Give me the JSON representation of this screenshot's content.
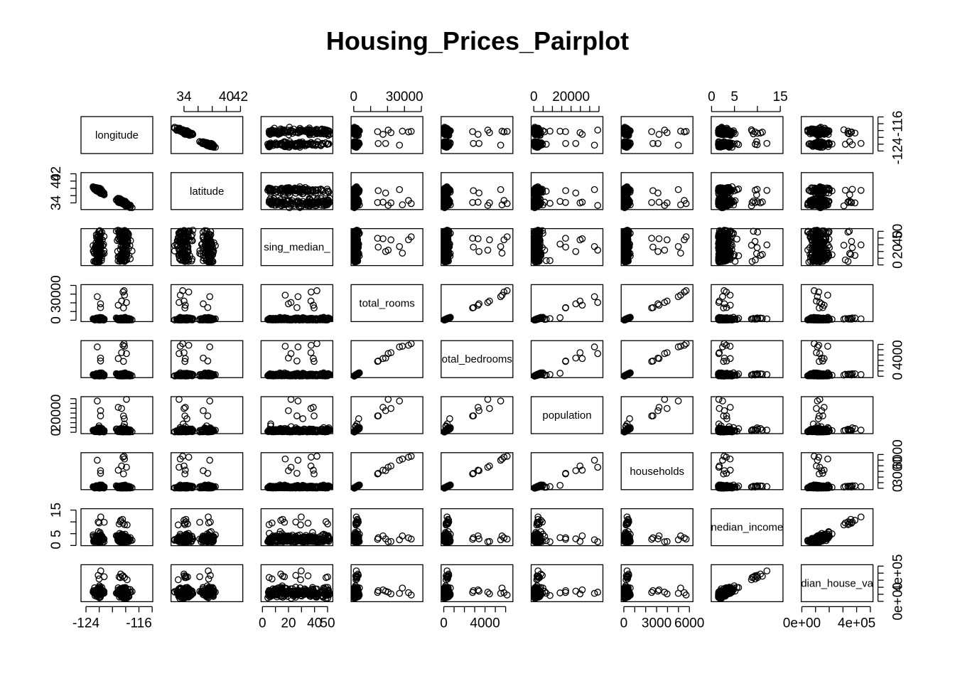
{
  "chart_data": {
    "type": "scatter",
    "subtype": "pairplot",
    "title": "Housing_Prices_Pairplot",
    "variables": [
      {
        "name": "longitude",
        "label": "longitude",
        "range": [
          -124.35,
          -114.31
        ],
        "ticks": [
          -124,
          -122,
          -120,
          -118,
          -116,
          -114
        ],
        "tick_labels": {
          "-124": "-124",
          "-116": "-116"
        }
      },
      {
        "name": "latitude",
        "label": "latitude",
        "range": [
          32.54,
          41.95
        ],
        "ticks": [
          34,
          36,
          38,
          40,
          42
        ],
        "tick_labels": {
          "34": "34",
          "40": "40",
          "42": "42"
        }
      },
      {
        "name": "housing_median_age",
        "label": "sing_median_",
        "range": [
          1,
          52
        ],
        "ticks": [
          0,
          10,
          20,
          30,
          40,
          50
        ],
        "tick_labels": {
          "0": "0",
          "20": "20",
          "40": "40",
          "50": "50"
        }
      },
      {
        "name": "total_rooms",
        "label": "total_rooms",
        "range": [
          2,
          39320
        ],
        "ticks": [
          0,
          10000,
          20000,
          30000,
          40000
        ],
        "tick_labels": {
          "0": "0",
          "30000": "30000"
        }
      },
      {
        "name": "total_bedrooms",
        "label": "otal_bedrooms",
        "range": [
          1,
          6445
        ],
        "ticks": [
          0,
          1000,
          2000,
          3000,
          4000,
          5000,
          6000
        ],
        "tick_labels": {
          "0": "0",
          "4000": "4000"
        }
      },
      {
        "name": "population",
        "label": "population",
        "range": [
          3,
          35682
        ],
        "ticks": [
          0,
          5000,
          10000,
          15000,
          20000,
          25000,
          30000,
          35000
        ],
        "tick_labels": {
          "0": "0",
          "20000": "20000"
        }
      },
      {
        "name": "households",
        "label": "households",
        "range": [
          1,
          6082
        ],
        "ticks": [
          0,
          1000,
          2000,
          3000,
          4000,
          5000,
          6000
        ],
        "tick_labels": {
          "0": "0",
          "3000": "3000",
          "6000": "6000"
        }
      },
      {
        "name": "median_income",
        "label": "nedian_income",
        "range": [
          0.5,
          15.0
        ],
        "ticks": [
          0,
          5,
          10,
          15
        ],
        "tick_labels": {
          "0": "0",
          "5": "5",
          "15": "15"
        }
      },
      {
        "name": "median_house_value",
        "label": "dian_house_va",
        "range": [
          14999,
          500001
        ],
        "ticks": [
          0,
          100000,
          200000,
          300000,
          400000,
          500000
        ],
        "tick_labels": {
          "0": "0e+00",
          "400000": "4e+05"
        }
      }
    ],
    "axis_sides": {
      "top_x": [
        1,
        3,
        5,
        7
      ],
      "bottom_x": [
        0,
        2,
        4,
        6,
        8
      ],
      "left_y": [
        1,
        3,
        5,
        7
      ],
      "right_y": [
        0,
        2,
        4,
        6,
        8
      ]
    },
    "marker": "open-circle",
    "grid": false,
    "legend": "none"
  }
}
